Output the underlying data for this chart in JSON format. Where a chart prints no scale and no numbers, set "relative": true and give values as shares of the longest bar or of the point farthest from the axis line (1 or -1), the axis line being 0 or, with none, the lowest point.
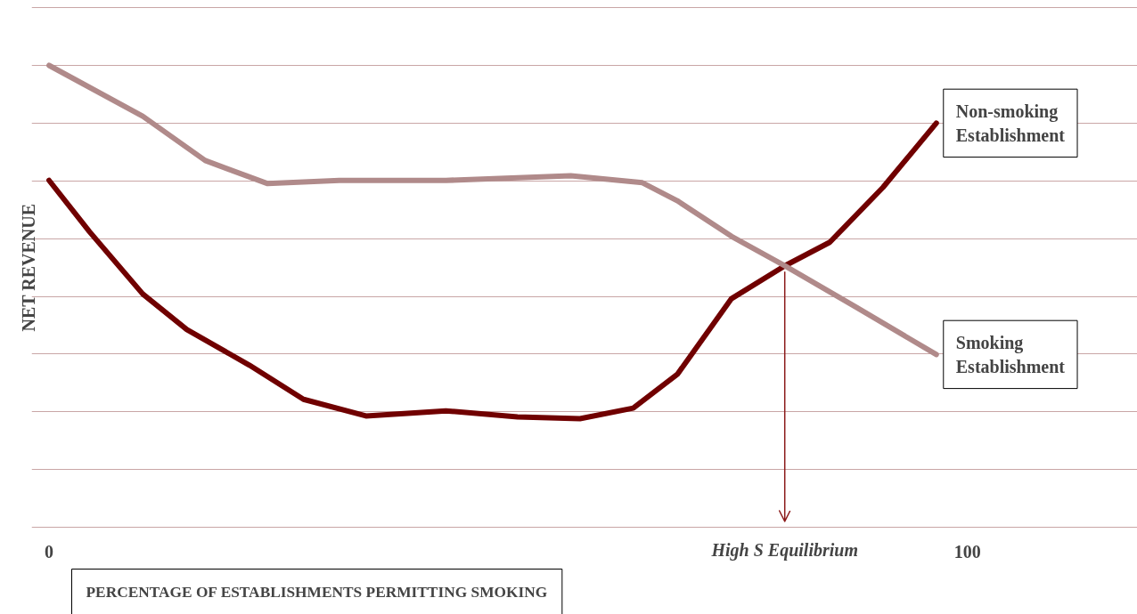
{
  "chart_data": {
    "type": "line",
    "relative": true,
    "xlabel": "PERCENTAGE OF ESTABLISHMENTS PERMITTING SMOKING",
    "ylabel": "NET REVENUE",
    "xlim": [
      -1.9,
      118.5
    ],
    "xticks": [
      0,
      100
    ],
    "grid": "y",
    "legend": false,
    "line_style": "solid",
    "marker": "none",
    "ref_lines": [
      {
        "axis": "x",
        "value": 80.1,
        "label": "High S Equilibrium",
        "color": "#8b1a1a"
      }
    ],
    "series": [
      {
        "name": "Non-smoking Establishment",
        "color": "#700000",
        "x": [
          0,
          4.4,
          10.2,
          15.0,
          21.8,
          27.7,
          34.5,
          43.2,
          51.0,
          57.8,
          63.6,
          68.4,
          74.3,
          80.1,
          85.0,
          90.8,
          96.6
        ],
        "values": [
          0.751,
          0.64,
          0.505,
          0.428,
          0.351,
          0.277,
          0.241,
          0.252,
          0.239,
          0.235,
          0.258,
          0.331,
          0.495,
          0.566,
          0.617,
          0.736,
          0.875
        ]
      },
      {
        "name": "Smoking Establishment",
        "color": "#b08a8a",
        "x": [
          0,
          10.2,
          17.0,
          23.8,
          31.6,
          43.2,
          56.8,
          64.6,
          68.4,
          74.3,
          80.1,
          87.9,
          96.6
        ],
        "values": [
          1.0,
          0.89,
          0.794,
          0.744,
          0.751,
          0.751,
          0.761,
          0.746,
          0.707,
          0.63,
          0.566,
          0.476,
          0.374
        ]
      }
    ]
  }
}
